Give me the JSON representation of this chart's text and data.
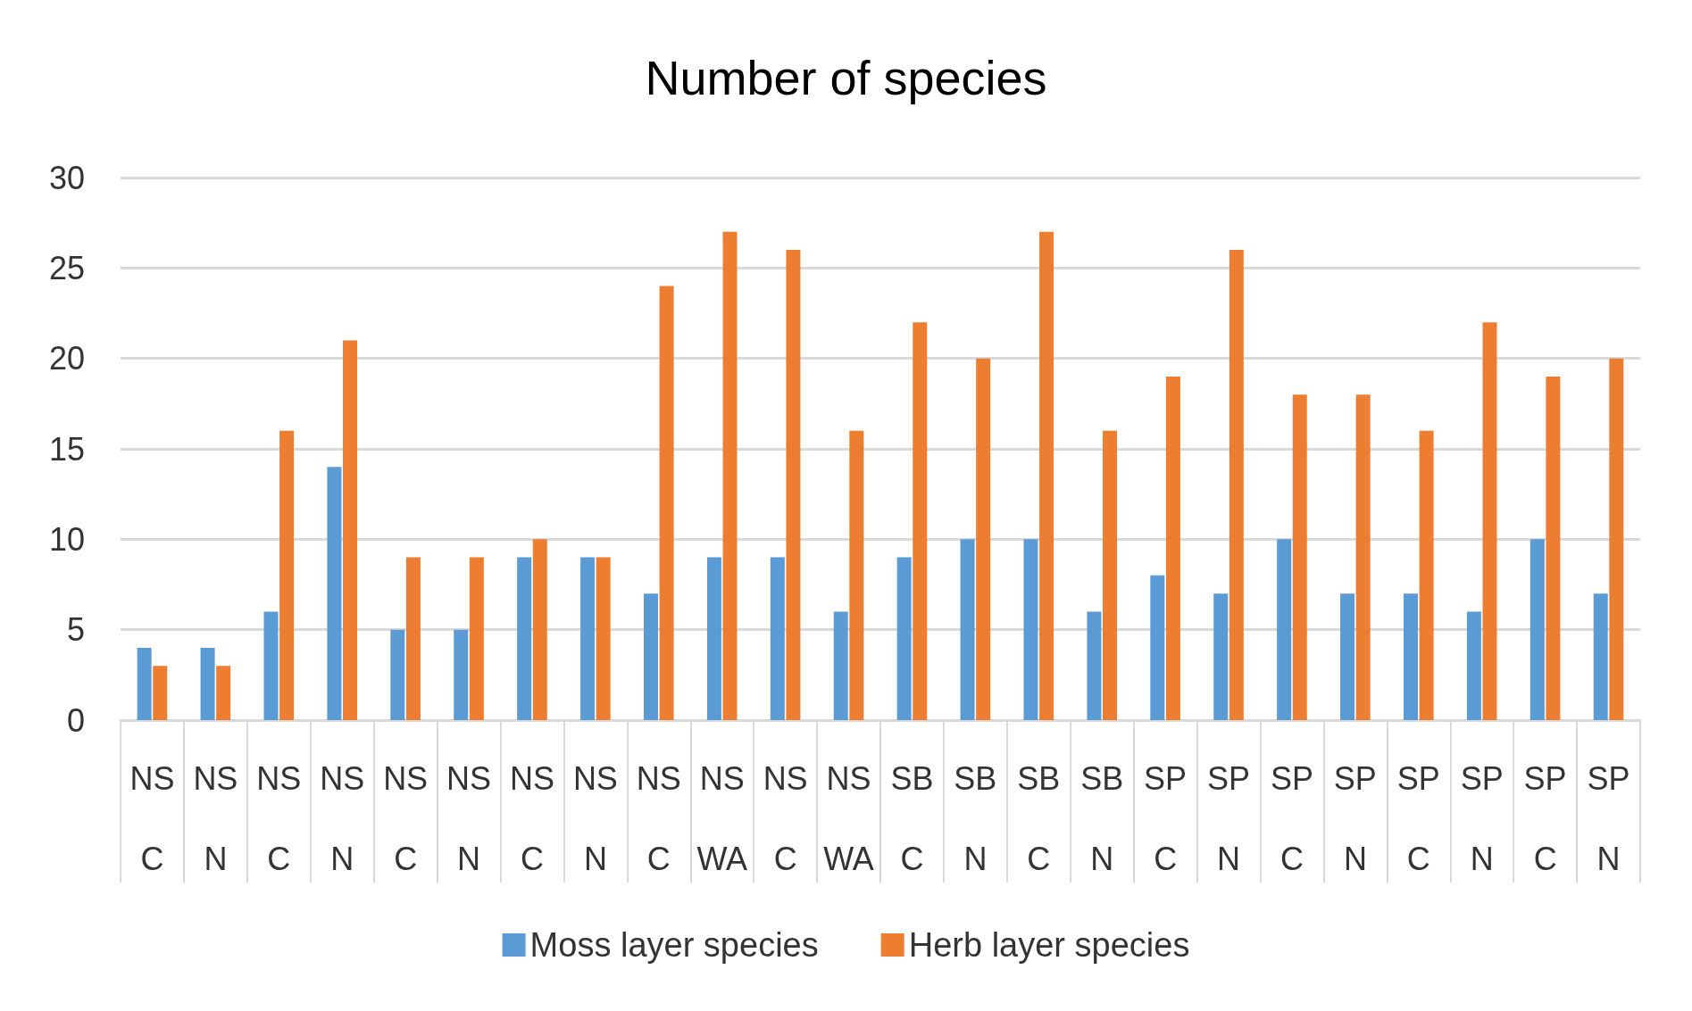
{
  "chart_data": {
    "type": "bar",
    "title": "Number of species",
    "categories": [
      "NS\nC",
      "NS\nN",
      "NS\nC",
      "NS\nN",
      "NS\nC",
      "NS\nN",
      "NS\nC",
      "NS\nN",
      "NS\nC",
      "NS\nWA",
      "NS\nC",
      "NS\nWA",
      "SB\nC",
      "SB\nN",
      "SB\nC",
      "SB\nN",
      "SP\nC",
      "SP\nN",
      "SP\nC",
      "SP\nN",
      "SP\nC",
      "SP\nN",
      "SP\nC",
      "SP\nN"
    ],
    "series": [
      {
        "name": "Moss layer species",
        "color": "#5b9bd5",
        "values": [
          4,
          4,
          6,
          14,
          5,
          5,
          9,
          9,
          7,
          9,
          9,
          6,
          9,
          10,
          10,
          6,
          8,
          7,
          10,
          7,
          7,
          6,
          10,
          7
        ]
      },
      {
        "name": "Herb layer species",
        "color": "#ed7d31",
        "values": [
          3,
          3,
          16,
          21,
          9,
          9,
          10,
          9,
          24,
          27,
          26,
          16,
          22,
          20,
          27,
          16,
          19,
          26,
          18,
          18,
          16,
          22,
          19,
          20
        ]
      }
    ],
    "ylim": [
      0,
      30
    ],
    "yticks": [
      0,
      5,
      10,
      15,
      20,
      25,
      30
    ],
    "grid": "y",
    "legend": "bottom"
  }
}
